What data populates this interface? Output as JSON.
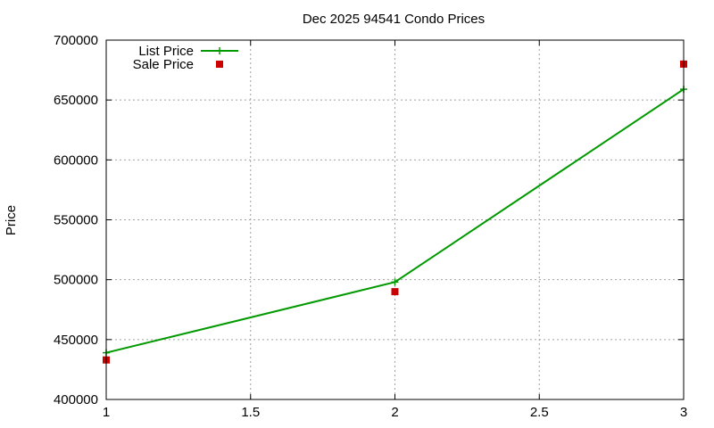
{
  "chart_data": {
    "type": "line",
    "title": "Dec 2025 94541 Condo Prices",
    "xlabel": "",
    "ylabel": "Price",
    "xlim": [
      1,
      3
    ],
    "ylim": [
      400000,
      700000
    ],
    "xticks": [
      1,
      1.5,
      2,
      2.5,
      3
    ],
    "xtick_labels": [
      "1",
      "1.5",
      "2",
      "2.5",
      "3"
    ],
    "yticks": [
      400000,
      450000,
      500000,
      550000,
      600000,
      650000,
      700000
    ],
    "ytick_labels": [
      "400000",
      "450000",
      "500000",
      "550000",
      "600000",
      "650000",
      "700000"
    ],
    "grid": true,
    "legend_position": "top-left",
    "series": [
      {
        "name": "List Price",
        "style": "line+cross",
        "color": "#009900",
        "x": [
          1,
          2,
          3
        ],
        "y": [
          439000,
          498000,
          659000
        ]
      },
      {
        "name": "Sale Price",
        "style": "square-markers",
        "color": "#cc0000",
        "x": [
          1,
          2,
          3
        ],
        "y": [
          433000,
          490000,
          680000
        ]
      }
    ]
  }
}
